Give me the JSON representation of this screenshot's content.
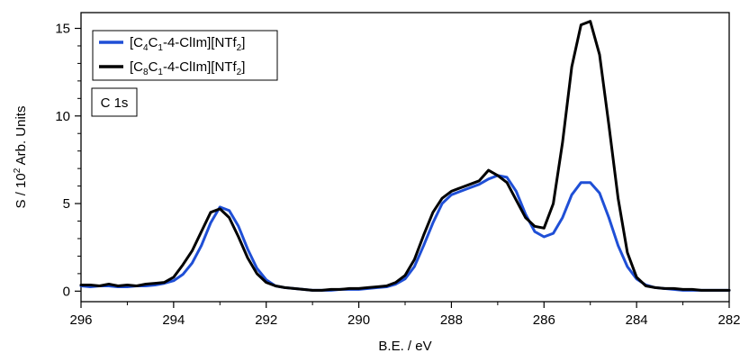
{
  "chart_data": {
    "type": "line",
    "xlabel": "B.E. / eV",
    "ylabel": "S / 10² Arb. Units",
    "xlim": [
      296,
      282
    ],
    "ylim": [
      -0.6,
      15.9
    ],
    "x_reversed": true,
    "x_ticks": [
      296,
      294,
      292,
      290,
      288,
      286,
      284,
      282
    ],
    "y_ticks": [
      0,
      5,
      10,
      15
    ],
    "grid": false,
    "legend": {
      "placement": "top-left"
    },
    "annotation": "C 1s",
    "series": [
      {
        "name": "[C4C1-4-ClIm][NTf2]",
        "name_parts": [
          {
            "t": "[C",
            "sub": false
          },
          {
            "t": "4",
            "sub": true
          },
          {
            "t": "C",
            "sub": false
          },
          {
            "t": "1",
            "sub": true
          },
          {
            "t": "-4-ClIm][NTf",
            "sub": false
          },
          {
            "t": "2",
            "sub": true
          },
          {
            "t": "]",
            "sub": false
          }
        ],
        "color": "#1f4fd6",
        "x": [
          296.0,
          295.8,
          295.6,
          295.4,
          295.2,
          295.0,
          294.8,
          294.6,
          294.4,
          294.2,
          294.0,
          293.8,
          293.6,
          293.4,
          293.2,
          293.0,
          292.8,
          292.6,
          292.4,
          292.2,
          292.0,
          291.8,
          291.6,
          291.4,
          291.2,
          291.0,
          290.8,
          290.6,
          290.4,
          290.2,
          290.0,
          289.8,
          289.6,
          289.4,
          289.2,
          289.0,
          288.8,
          288.6,
          288.4,
          288.2,
          288.0,
          287.8,
          287.6,
          287.4,
          287.2,
          287.0,
          286.8,
          286.6,
          286.4,
          286.2,
          286.0,
          285.8,
          285.6,
          285.4,
          285.2,
          285.0,
          284.8,
          284.6,
          284.4,
          284.2,
          284.0,
          283.8,
          283.6,
          283.4,
          283.2,
          283.0,
          282.8,
          282.6,
          282.4,
          282.2,
          282.0
        ],
        "y": [
          0.3,
          0.25,
          0.3,
          0.3,
          0.25,
          0.25,
          0.3,
          0.3,
          0.35,
          0.45,
          0.6,
          0.95,
          1.6,
          2.6,
          3.9,
          4.8,
          4.6,
          3.7,
          2.4,
          1.3,
          0.65,
          0.3,
          0.2,
          0.15,
          0.1,
          0.05,
          0.05,
          0.05,
          0.1,
          0.1,
          0.1,
          0.15,
          0.2,
          0.25,
          0.4,
          0.7,
          1.4,
          2.6,
          3.9,
          5.0,
          5.5,
          5.7,
          5.9,
          6.1,
          6.4,
          6.6,
          6.5,
          5.7,
          4.4,
          3.4,
          3.1,
          3.3,
          4.2,
          5.5,
          6.2,
          6.2,
          5.6,
          4.2,
          2.6,
          1.4,
          0.7,
          0.35,
          0.2,
          0.15,
          0.1,
          0.05,
          0.05,
          0.05,
          0.05,
          0.05,
          0.05
        ]
      },
      {
        "name": "[C8C1-4-ClIm][NTf2]",
        "name_parts": [
          {
            "t": "[C",
            "sub": false
          },
          {
            "t": "8",
            "sub": true
          },
          {
            "t": "C",
            "sub": false
          },
          {
            "t": "1",
            "sub": true
          },
          {
            "t": "-4-ClIm][NTf",
            "sub": false
          },
          {
            "t": "2",
            "sub": true
          },
          {
            "t": "]",
            "sub": false
          }
        ],
        "color": "#000000",
        "x": [
          296.0,
          295.8,
          295.6,
          295.4,
          295.2,
          295.0,
          294.8,
          294.6,
          294.4,
          294.2,
          294.0,
          293.8,
          293.6,
          293.4,
          293.2,
          293.0,
          292.8,
          292.6,
          292.4,
          292.2,
          292.0,
          291.8,
          291.6,
          291.4,
          291.2,
          291.0,
          290.8,
          290.6,
          290.4,
          290.2,
          290.0,
          289.8,
          289.6,
          289.4,
          289.2,
          289.0,
          288.8,
          288.6,
          288.4,
          288.2,
          288.0,
          287.8,
          287.6,
          287.4,
          287.2,
          287.0,
          286.8,
          286.6,
          286.4,
          286.2,
          286.0,
          285.8,
          285.6,
          285.4,
          285.2,
          285.0,
          284.8,
          284.6,
          284.4,
          284.2,
          284.0,
          283.8,
          283.6,
          283.4,
          283.2,
          283.0,
          282.8,
          282.6,
          282.4,
          282.2,
          282.0
        ],
        "y": [
          0.35,
          0.35,
          0.3,
          0.4,
          0.3,
          0.35,
          0.3,
          0.4,
          0.45,
          0.5,
          0.8,
          1.5,
          2.3,
          3.4,
          4.5,
          4.7,
          4.2,
          3.1,
          1.9,
          1.0,
          0.5,
          0.3,
          0.2,
          0.15,
          0.1,
          0.05,
          0.05,
          0.1,
          0.1,
          0.15,
          0.15,
          0.2,
          0.25,
          0.3,
          0.5,
          0.9,
          1.8,
          3.2,
          4.5,
          5.3,
          5.7,
          5.9,
          6.1,
          6.3,
          6.9,
          6.6,
          6.2,
          5.2,
          4.2,
          3.7,
          3.6,
          5.0,
          8.5,
          12.8,
          15.2,
          15.4,
          13.5,
          9.5,
          5.3,
          2.2,
          0.8,
          0.3,
          0.2,
          0.15,
          0.15,
          0.1,
          0.1,
          0.05,
          0.05,
          0.05,
          0.05
        ]
      }
    ]
  }
}
